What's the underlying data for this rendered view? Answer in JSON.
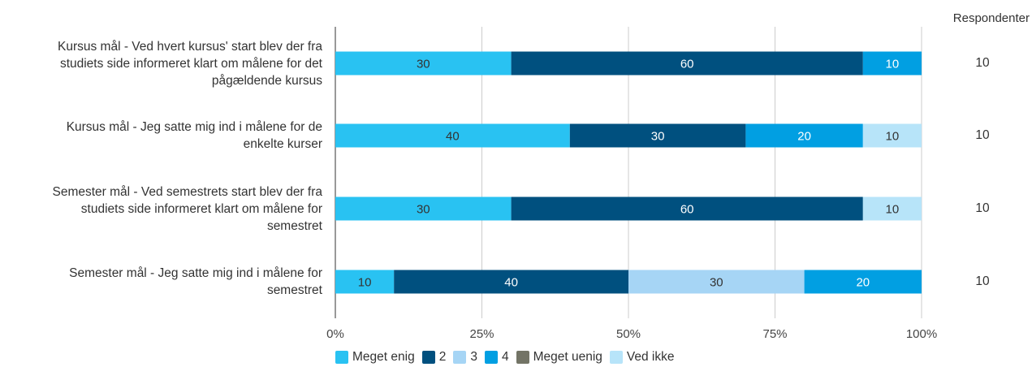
{
  "chart_data": {
    "type": "bar",
    "orientation": "horizontal",
    "stacked": "percent",
    "categories": [
      [
        "Kursus mål - Ved hvert kursus' start blev der fra",
        "studiets side informeret klart om målene for det",
        "pågældende kursus"
      ],
      [
        "Kursus mål - Jeg satte mig ind i målene for de",
        "enkelte kurser"
      ],
      [
        "Semester mål - Ved semestrets start blev der fra",
        "studiets side informeret klart om målene for",
        "semestret"
      ],
      [
        "Semester mål - Jeg satte mig ind i målene for",
        "semestret"
      ]
    ],
    "series": [
      {
        "name": "Meget enig",
        "color": "#29C2F2",
        "values": [
          30,
          40,
          30,
          10
        ]
      },
      {
        "name": "2",
        "color": "#00507F",
        "values": [
          60,
          30,
          60,
          40
        ]
      },
      {
        "name": "3",
        "color": "#A6D5F5",
        "values": [
          0,
          0,
          0,
          30
        ]
      },
      {
        "name": "4",
        "color": "#019FE2",
        "values": [
          10,
          20,
          0,
          20
        ]
      },
      {
        "name": "Meget uenig",
        "color": "#737466",
        "values": [
          0,
          0,
          0,
          0
        ]
      },
      {
        "name": "Ved ikke",
        "color": "#B7E4F9",
        "values": [
          0,
          10,
          10,
          0
        ]
      }
    ],
    "xlim": [
      0,
      100
    ],
    "x_ticks": [
      "0%",
      "25%",
      "50%",
      "75%",
      "100%"
    ],
    "grid": true,
    "legend_position": "bottom",
    "respondents_header": "Respondenter",
    "respondents": [
      "10",
      "10",
      "10",
      "10"
    ]
  }
}
